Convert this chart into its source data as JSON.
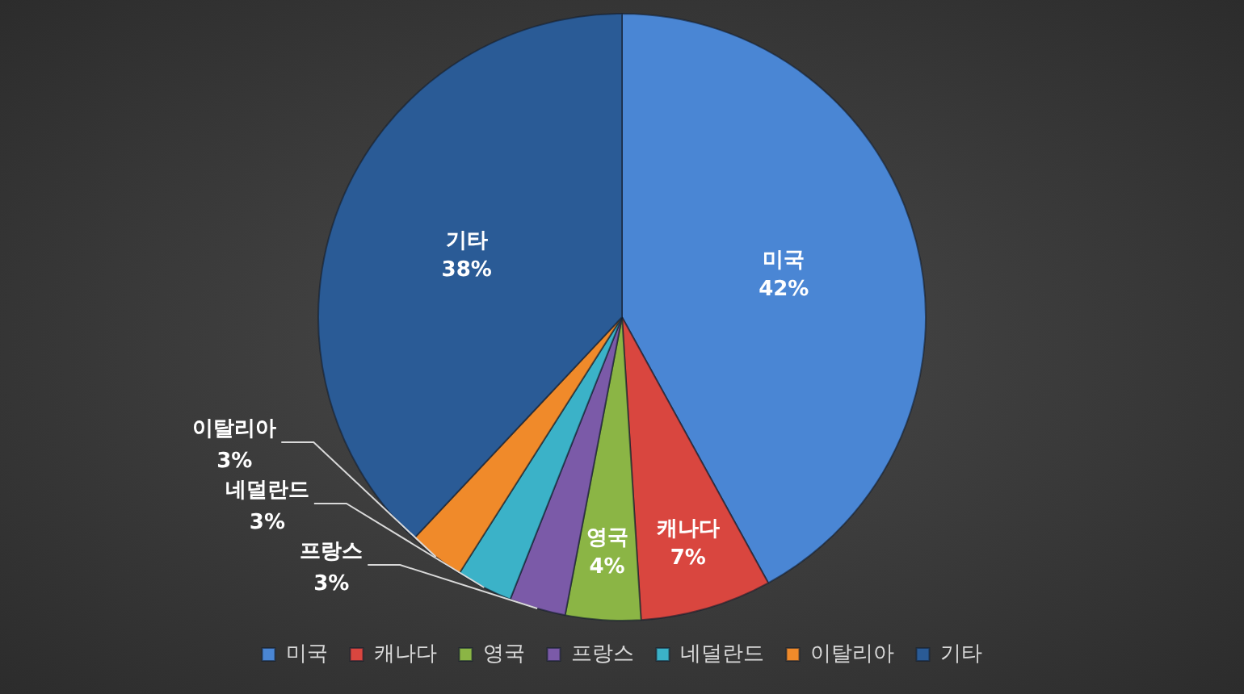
{
  "chart_data": {
    "type": "pie",
    "categories": [
      "미국",
      "캐나다",
      "영국",
      "프랑스",
      "네덜란드",
      "이탈리아",
      "기타"
    ],
    "values": [
      42,
      7,
      4,
      3,
      3,
      3,
      38
    ],
    "colors": [
      "#4a86d4",
      "#d9463f",
      "#8bb545",
      "#7b5aa8",
      "#3bb2c8",
      "#f08a2a",
      "#2a5b96"
    ],
    "value_labels": [
      "42%",
      "7%",
      "4%",
      "3%",
      "3%",
      "3%",
      "38%"
    ],
    "legend": "bottom"
  }
}
